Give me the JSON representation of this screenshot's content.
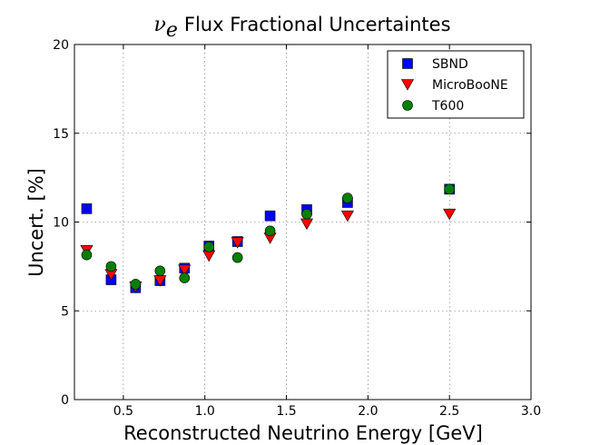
{
  "chart_data": {
    "type": "scatter",
    "title": "Flux Fractional Uncertaintes",
    "title_prefix": "ν",
    "title_prefix_sub": "e",
    "xlabel": "Reconstructed Neutrino Energy [GeV]",
    "ylabel": "Uncert. [%]",
    "xlim": [
      0.2,
      3.0
    ],
    "ylim": [
      0,
      20
    ],
    "xticks": [
      0.5,
      1.0,
      1.5,
      2.0,
      2.5,
      3.0
    ],
    "xtick_labels": [
      "0.5",
      "1.0",
      "1.5",
      "2.0",
      "2.5",
      "3.0"
    ],
    "yticks": [
      0,
      5,
      10,
      15,
      20
    ],
    "ytick_labels": [
      "0",
      "5",
      "10",
      "15",
      "20"
    ],
    "grid": true,
    "legend_position": "top-right",
    "series": [
      {
        "name": "SBND",
        "marker": "square",
        "color": "#0000ff",
        "x": [
          0.275,
          0.425,
          0.575,
          0.725,
          0.875,
          1.025,
          1.2,
          1.4,
          1.625,
          1.875,
          2.5
        ],
        "y": [
          10.75,
          6.75,
          6.3,
          6.7,
          7.4,
          8.65,
          8.9,
          10.35,
          10.7,
          11.1,
          11.85
        ]
      },
      {
        "name": "MicroBooNE",
        "marker": "triangle-down",
        "color": "#ff0000",
        "x": [
          0.275,
          0.425,
          0.575,
          0.725,
          0.875,
          1.025,
          1.2,
          1.4,
          1.625,
          1.875,
          2.5
        ],
        "y": [
          8.4,
          7.05,
          6.35,
          6.7,
          7.3,
          8.1,
          8.85,
          9.1,
          9.9,
          10.35,
          10.45
        ]
      },
      {
        "name": "T600",
        "marker": "circle",
        "color": "#008000",
        "x": [
          0.275,
          0.425,
          0.575,
          0.725,
          0.875,
          1.025,
          1.2,
          1.4,
          1.625,
          1.875,
          2.5
        ],
        "y": [
          8.15,
          7.5,
          6.5,
          7.25,
          6.85,
          8.6,
          8.0,
          9.5,
          10.45,
          11.35,
          11.85
        ]
      }
    ]
  }
}
